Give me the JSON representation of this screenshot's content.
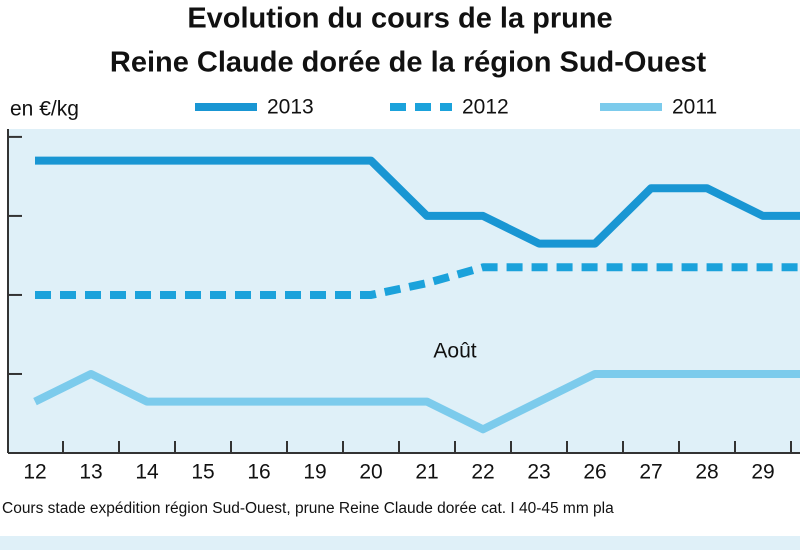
{
  "chart_data": {
    "type": "line",
    "title": [
      "Evolution du cours de la prune",
      "Reine Claude dorée de la région Sud-Ouest"
    ],
    "y_label": "en €/kg",
    "annotation": "Août",
    "footnote": "Cours stade expédition région Sud-Ouest, prune Reine Claude dorée cat. I 40-45 mm pla",
    "categories": [
      "12",
      "13",
      "14",
      "15",
      "16",
      "19",
      "20",
      "21",
      "22",
      "23",
      "26",
      "27",
      "28",
      "29",
      null
    ],
    "series": [
      {
        "name": "2013",
        "color": "#1996d3",
        "style": "solid",
        "values": [
          1.54,
          1.54,
          1.54,
          1.54,
          1.54,
          1.54,
          1.54,
          1.4,
          1.4,
          1.33,
          1.33,
          1.47,
          1.47,
          1.4,
          1.4
        ]
      },
      {
        "name": "2012",
        "color": "#1ba2db",
        "style": "dashed",
        "values": [
          1.2,
          1.2,
          1.2,
          1.2,
          1.2,
          1.2,
          1.2,
          1.23,
          1.27,
          1.27,
          1.27,
          1.27,
          1.27,
          1.27,
          1.27
        ]
      },
      {
        "name": "2011",
        "color": "#7ccbec",
        "style": "solid",
        "values": [
          0.93,
          1.0,
          0.93,
          0.93,
          0.93,
          0.93,
          0.93,
          0.93,
          0.86,
          0.93,
          1.0,
          1.0,
          1.0,
          1.0,
          1.0
        ]
      }
    ],
    "ylim": [
      0.8,
      1.62
    ],
    "yticks": [
      1.0,
      1.2,
      1.4,
      1.6
    ]
  }
}
